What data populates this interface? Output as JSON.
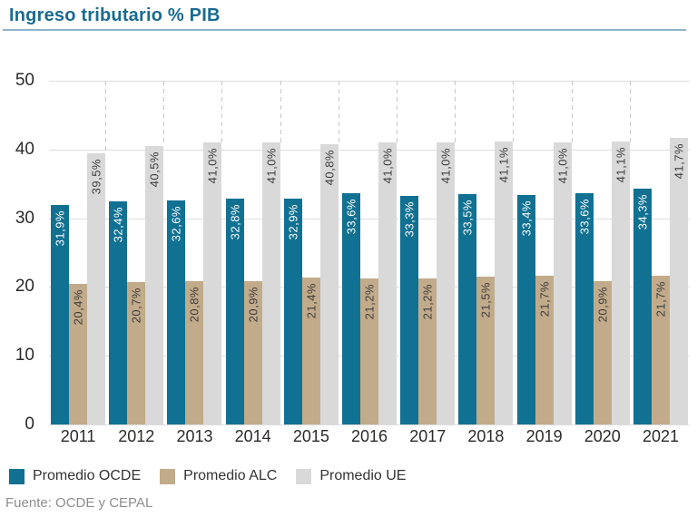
{
  "source": "Fuente: OCDE y CEPAL",
  "chart_data": {
    "type": "bar",
    "title": "Ingreso tributario % PIB",
    "categories": [
      "2011",
      "2012",
      "2013",
      "2014",
      "2015",
      "2016",
      "2017",
      "2018",
      "2019",
      "2020",
      "2021"
    ],
    "series": [
      {
        "name": "Promedio OCDE",
        "color": "#117192",
        "label_color": "#ffffff",
        "values": [
          31.9,
          32.4,
          32.6,
          32.8,
          32.9,
          33.6,
          33.3,
          33.5,
          33.4,
          33.6,
          34.3
        ],
        "labels": [
          "31,9%",
          "32,4%",
          "32,6%",
          "32,8%",
          "32,9%",
          "33,6%",
          "33,3%",
          "33,5%",
          "33,4%",
          "33,6%",
          "34,3%"
        ]
      },
      {
        "name": "Promedio ALC",
        "color": "#c2ab8b",
        "label_color": "#3e3e3d",
        "values": [
          20.4,
          20.7,
          20.8,
          20.9,
          21.4,
          21.2,
          21.2,
          21.5,
          21.7,
          20.9,
          21.7
        ],
        "labels": [
          "20,4%",
          "20,7%",
          "20,8%",
          "20,9%",
          "21,4%",
          "21,2%",
          "21,2%",
          "21,5%",
          "21,7%",
          "20,9%",
          "21,7%"
        ]
      },
      {
        "name": "Promedio UE",
        "color": "#d9d9d9",
        "label_color": "#3e3e3d",
        "values": [
          39.5,
          40.5,
          41.0,
          41.0,
          40.8,
          41.0,
          41.0,
          41.1,
          41.0,
          41.1,
          41.7
        ],
        "labels": [
          "39,5%",
          "40,5%",
          "41,0%",
          "41,0%",
          "40,8%",
          "41,0%",
          "41,0%",
          "41,1%",
          "41,0%",
          "41,1%",
          "41,7%"
        ]
      }
    ],
    "ylim": [
      0,
      50
    ],
    "yticks": [
      0,
      10,
      20,
      30,
      40,
      50
    ],
    "grid": "horizontal",
    "legend_position": "bottom",
    "drop_lines": "dashed vertical line at right edge of each Promedio UE bar (2011-2020), from the 50 gridline down to that bar's top"
  }
}
